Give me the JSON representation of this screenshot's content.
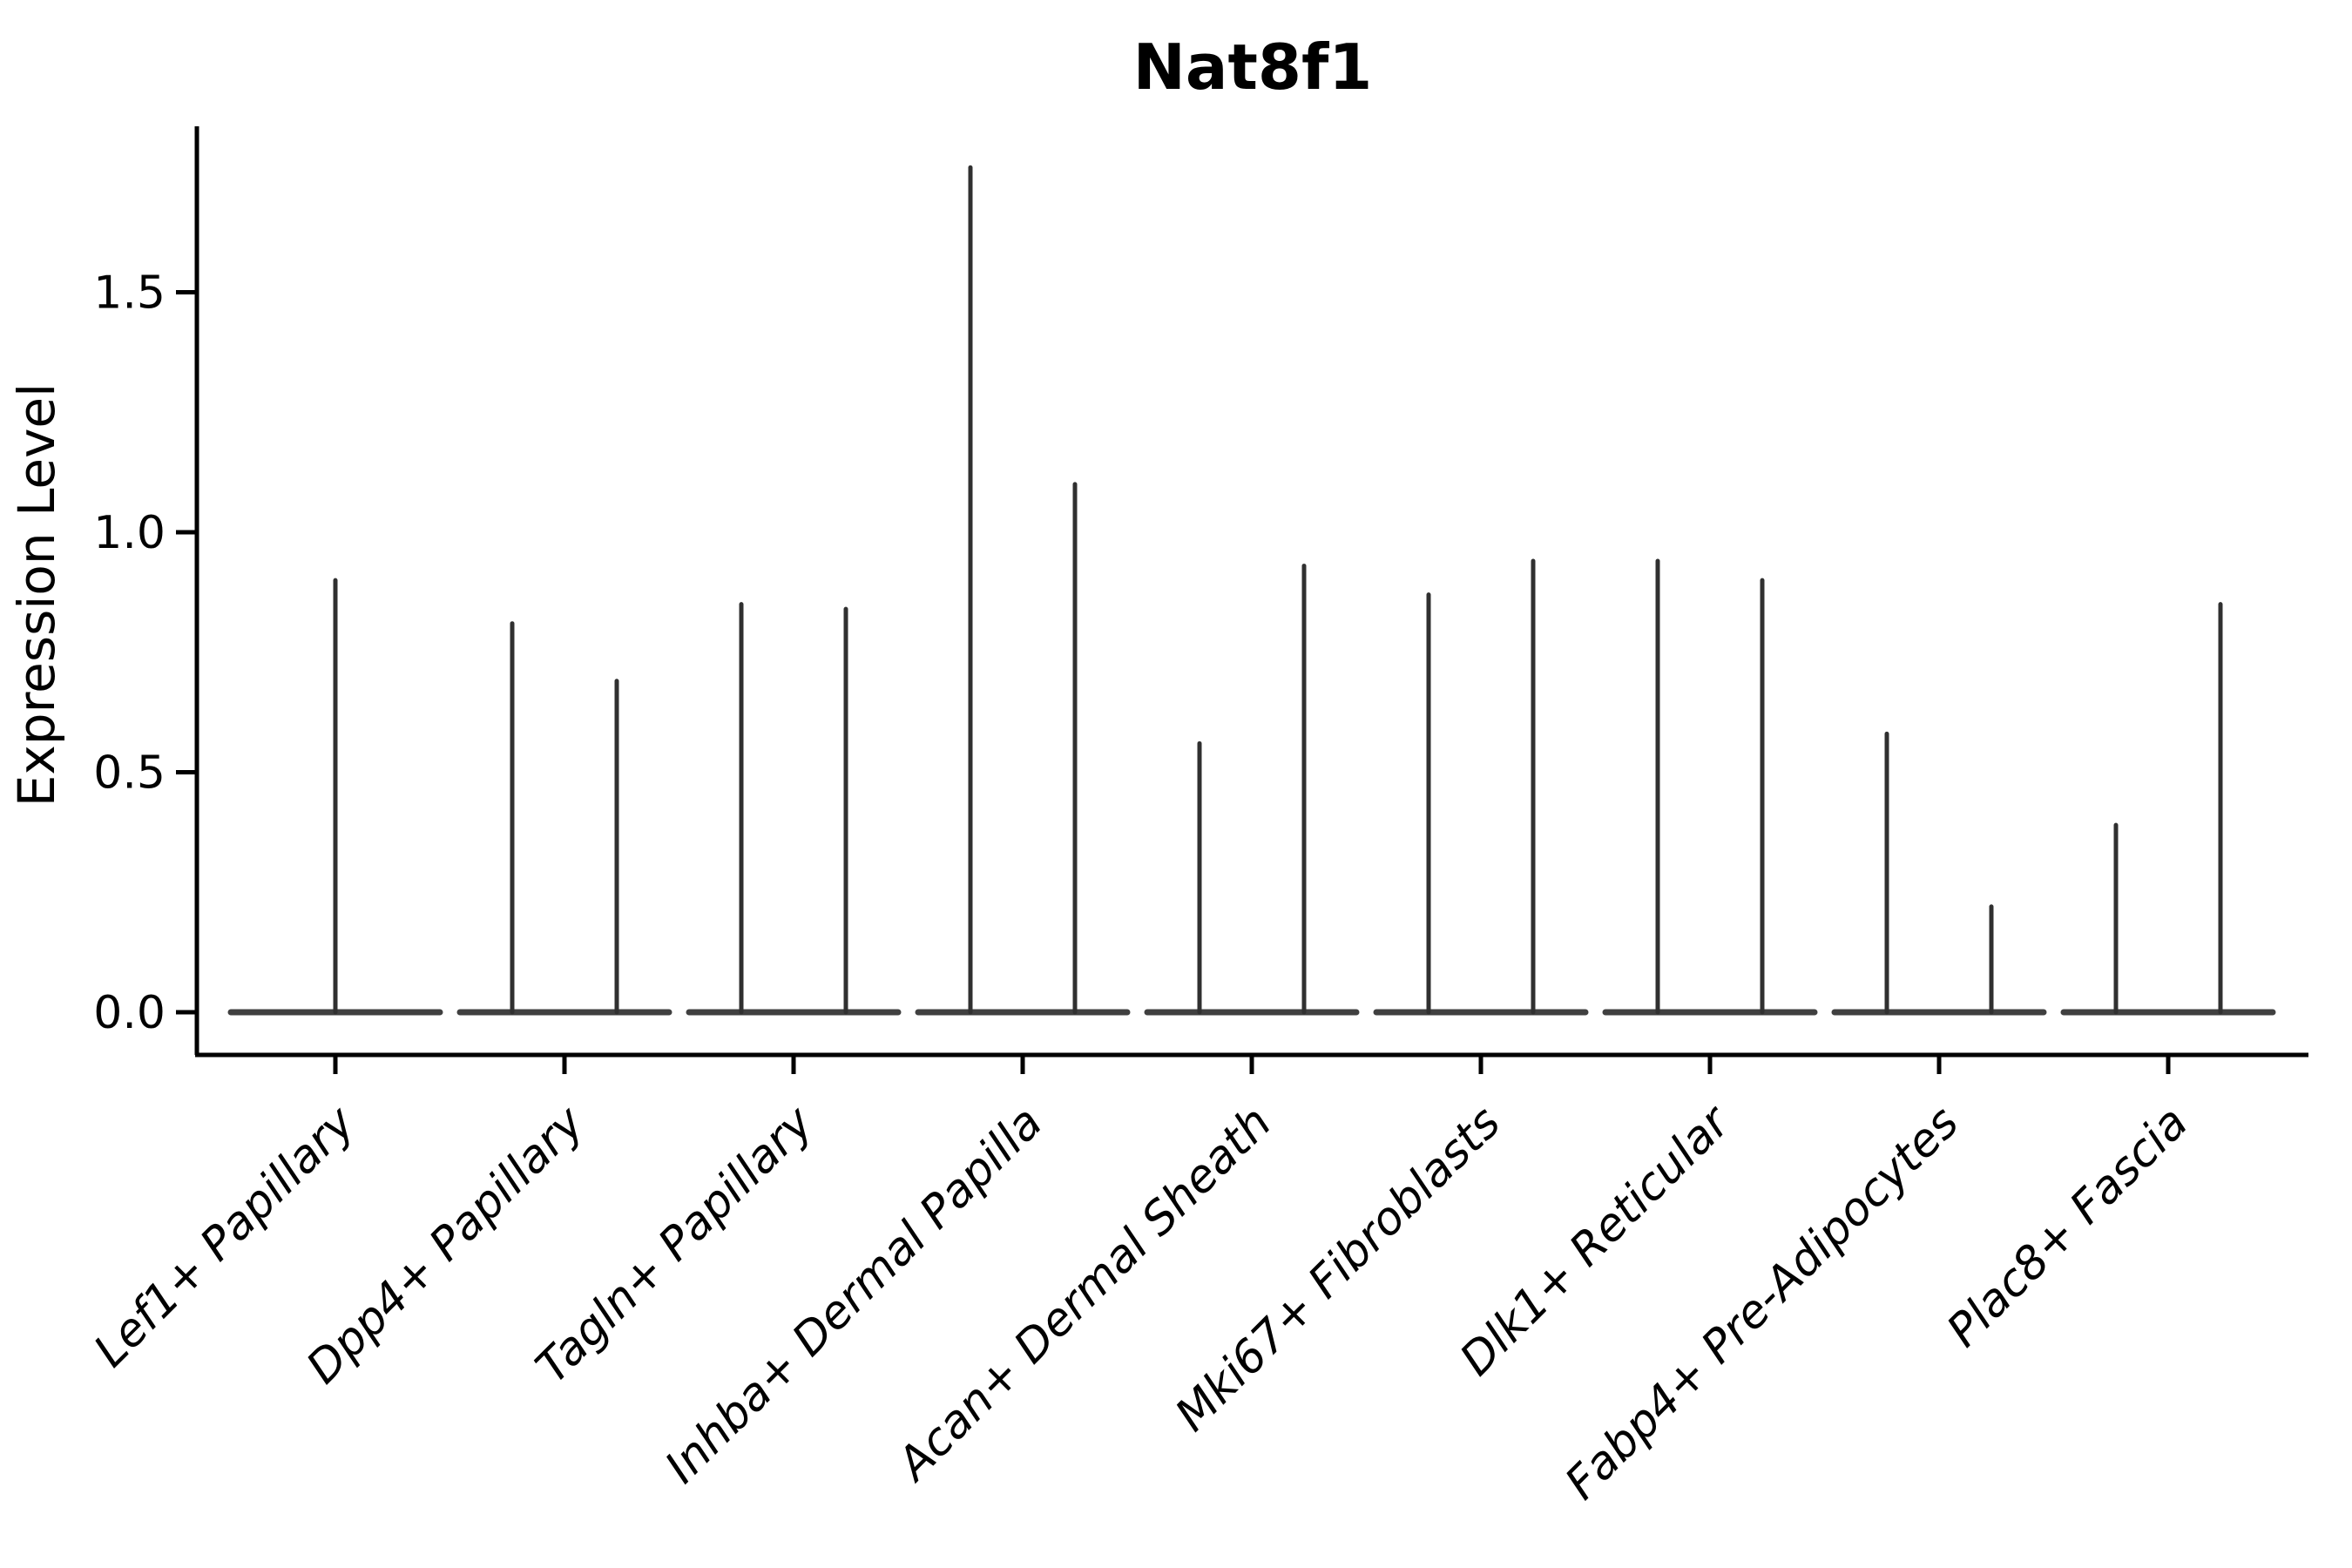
{
  "title": "Nat8f1",
  "y_axis": {
    "label": "Expression Level",
    "tick_labels": [
      "0.0",
      "0.5",
      "1.0",
      "1.5"
    ]
  },
  "x_axis": {
    "label": "",
    "tick_labels": [
      "Lef1+ Papillary",
      "Dpp4+ Papillary",
      "Tagln+ Papillary",
      "Inhba+ Dermal Papilla",
      "Acan+ Dermal Sheath",
      "Mki67+ Fibroblasts",
      "Dlk1+ Reticular",
      "Fabp4+ Pre-Adipocytes",
      "Plac8+ Fascia"
    ]
  },
  "colors": {
    "violin_stroke": "#303030",
    "axis": "#000000",
    "text": "#000000",
    "background": "#ffffff"
  },
  "chart_data": {
    "type": "violin",
    "title": "Nat8f1",
    "xlabel": "",
    "ylabel": "Expression Level",
    "y_ticks": [
      0.0,
      0.5,
      1.0,
      1.5
    ],
    "ylim": [
      -0.09,
      1.85
    ],
    "grid": false,
    "legend": "none",
    "x_tick_rotation_deg": 45,
    "style_note": "Seurat-style violin plot; expression is near zero for almost all cells so each violin collapses to a flat baseline at 0 with 1-2 hair-thin density spikes reaching the maximum expression value; two spikes per category correspond to the two violins of that group, Lef1+ Papillary has a single centered violin",
    "categories": [
      "Lef1+ Papillary",
      "Dpp4+ Papillary",
      "Tagln+ Papillary",
      "Inhba+ Dermal Papilla",
      "Acan+ Dermal Sheath",
      "Mki67+ Fibroblasts",
      "Dlk1+ Reticular",
      "Fabp4+ Pre-Adipocytes",
      "Plac8+ Fascia"
    ],
    "violins": [
      {
        "category": "Lef1+ Papillary",
        "baseline_value": 0.0,
        "spike_maxes": [
          0.9
        ]
      },
      {
        "category": "Dpp4+ Papillary",
        "baseline_value": 0.0,
        "spike_maxes": [
          0.81,
          0.69
        ]
      },
      {
        "category": "Tagln+ Papillary",
        "baseline_value": 0.0,
        "spike_maxes": [
          0.85,
          0.84
        ]
      },
      {
        "category": "Inhba+ Dermal Papilla",
        "baseline_value": 0.0,
        "spike_maxes": [
          1.76,
          1.1
        ]
      },
      {
        "category": "Acan+ Dermal Sheath",
        "baseline_value": 0.0,
        "spike_maxes": [
          0.56,
          0.93
        ]
      },
      {
        "category": "Mki67+ Fibroblasts",
        "baseline_value": 0.0,
        "spike_maxes": [
          0.87,
          0.94
        ]
      },
      {
        "category": "Dlk1+ Reticular",
        "baseline_value": 0.0,
        "spike_maxes": [
          0.94,
          0.9
        ]
      },
      {
        "category": "Fabp4+ Pre-Adipocytes",
        "baseline_value": 0.0,
        "spike_maxes": [
          0.58,
          0.22
        ]
      },
      {
        "category": "Plac8+ Fascia",
        "baseline_value": 0.0,
        "spike_maxes": [
          0.39,
          0.85
        ]
      }
    ]
  }
}
